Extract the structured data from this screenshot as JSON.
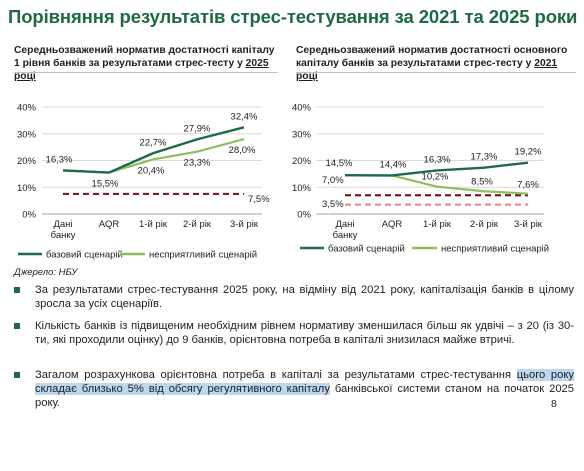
{
  "page": {
    "title": "Порівняння результатів стрес-тестування за 2021 та 2025 роки",
    "source": "Джерело: НБУ",
    "page_number": "8"
  },
  "bullets": [
    {
      "text": "За результатами стрес-тестування 2025 року, на відміну від 2021 року, капіталізація банків в цілому зросла за усіх сценаріїв."
    },
    {
      "text": "Кількість банків із підвищеним необхідним рівнем нормативу зменшилася більш як удвічі – з 20 (із 30-ти, які проходили оцінку) до 9 банків, орієнтовна потреба в капіталі знизилася майже втричі."
    },
    {
      "before": "Загалом розрахункова орієнтовна потреба в капіталі за результатами стрес-тестування ",
      "highlight": "цього року складає близько 5% від обсягу регулятивного капіталу",
      "after": " банківської системи станом на початок 2025 року."
    }
  ],
  "colors": {
    "title": "#1d6a45",
    "base": "#1d6a45",
    "adverse": "#8dbf5e",
    "norm": "#7b1c24",
    "norm2": "#f08c8c",
    "grid": "#d9d9d9",
    "highlight": "#bdd7ee"
  },
  "chart_data": [
    {
      "type": "line",
      "title_main": "Середньозважений норматив достатності капіталу 1 рівня банків за результатами стрес-тесту у ",
      "title_year": "2025 році",
      "categories": [
        "Дані банку",
        "AQR",
        "1-й рік",
        "2-й рік",
        "3-й рік"
      ],
      "category_labels": [
        [
          "Дані",
          "банку"
        ],
        [
          "AQR"
        ],
        [
          "1-й рік"
        ],
        [
          "2-й рік"
        ],
        [
          "3-й рік"
        ]
      ],
      "yticks": [
        "0%",
        "10%",
        "20%",
        "30%",
        "40%"
      ],
      "ylim": [
        0,
        40
      ],
      "series": [
        {
          "name": "базовий сценарій",
          "role": "base",
          "values": [
            16.3,
            15.5,
            22.7,
            27.9,
            32.4
          ],
          "labels": [
            "16,3%",
            "15,5%",
            "22,7%",
            "27,9%",
            "32,4%"
          ]
        },
        {
          "name": "несприятливий сценарій",
          "role": "adverse",
          "values": [
            16.3,
            15.5,
            20.4,
            23.3,
            28.0
          ],
          "labels": [
            "",
            "",
            "20,4%",
            "23,3%",
            "28,0%"
          ]
        }
      ],
      "thresholds": [
        {
          "value": 7.5,
          "label": "7,5%",
          "role": "norm"
        }
      ],
      "legend_position": "bottom"
    },
    {
      "type": "line",
      "title_main": "Середньозважений норматив достатності основного капіталу банків за результатами стрес-тесту у ",
      "title_year": "2021 році",
      "categories": [
        "Дані банку",
        "AQR",
        "1-й рік",
        "2-й рік",
        "3-й рік"
      ],
      "category_labels": [
        [
          "Дані",
          "банку"
        ],
        [
          "AQR"
        ],
        [
          "1-й рік"
        ],
        [
          "2-й рік"
        ],
        [
          "3-й рік"
        ]
      ],
      "yticks": [
        "0%",
        "10%",
        "20%",
        "30%",
        "40%"
      ],
      "ylim": [
        0,
        40
      ],
      "series": [
        {
          "name": "базовий сценарій",
          "role": "base",
          "values": [
            14.5,
            14.4,
            16.3,
            17.3,
            19.2
          ],
          "labels": [
            "14,5%",
            "14,4%",
            "16,3%",
            "17,3%",
            "19,2%"
          ]
        },
        {
          "name": "несприятливий сценарій",
          "role": "adverse",
          "values": [
            14.5,
            14.4,
            10.2,
            8.5,
            7.6
          ],
          "labels": [
            "",
            "",
            "10,2%",
            "8,5%",
            "7,6%"
          ]
        }
      ],
      "thresholds": [
        {
          "value": 7.0,
          "label": "7,0%",
          "role": "norm"
        },
        {
          "value": 3.5,
          "label": "3,5%",
          "role": "norm2"
        }
      ],
      "legend_position": "bottom"
    }
  ]
}
